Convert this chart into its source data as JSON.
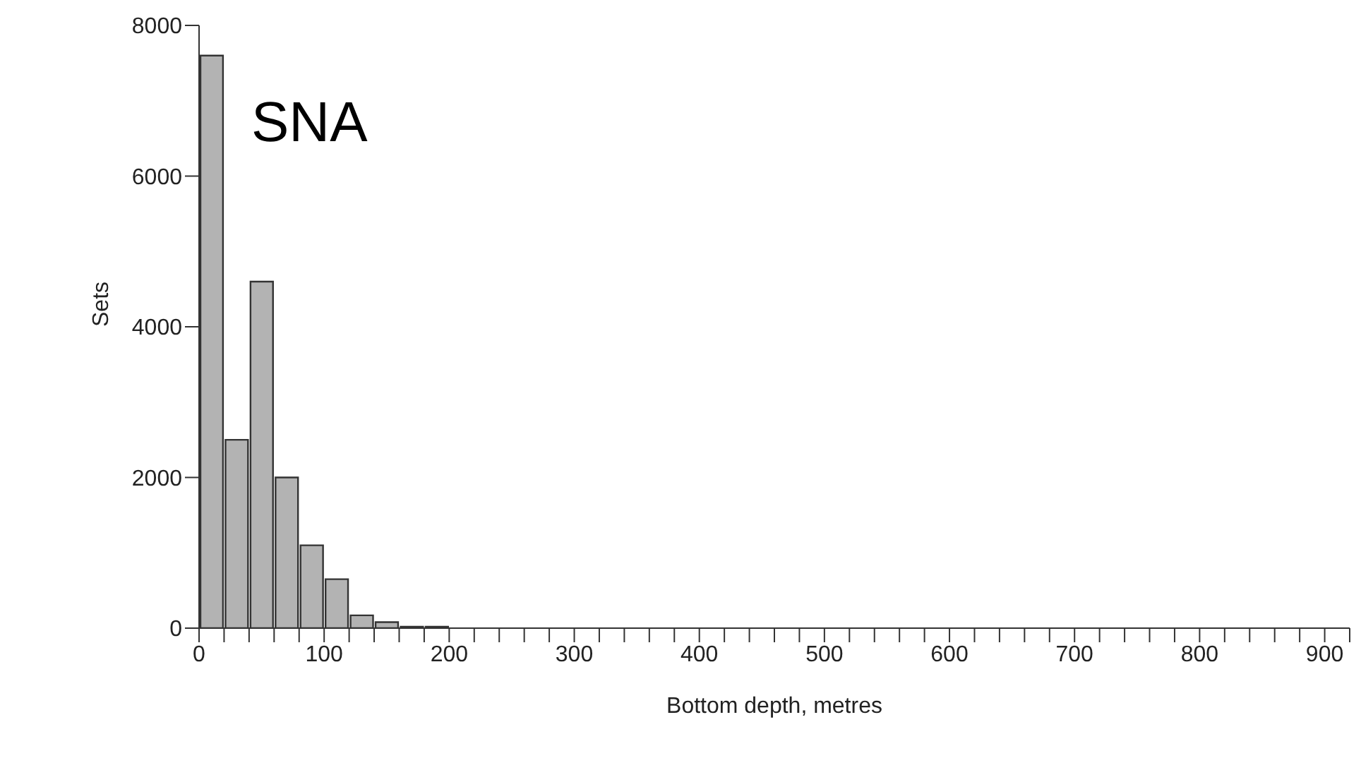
{
  "chart_data": {
    "type": "histogram",
    "title": "SNA",
    "xlabel": "Bottom depth, metres",
    "ylabel": "Sets",
    "bins": [
      0,
      20,
      40,
      60,
      80,
      100,
      120,
      140,
      160,
      180,
      200,
      220,
      240,
      260,
      280,
      300,
      320,
      340,
      360,
      380,
      400,
      420,
      440,
      460,
      480,
      500,
      520,
      540,
      560,
      580,
      600,
      620,
      640,
      660,
      680,
      700,
      720,
      740,
      760,
      780,
      800,
      820,
      840,
      860,
      880,
      900,
      920
    ],
    "values": [
      7600,
      2500,
      4600,
      2000,
      1100,
      650,
      170,
      80,
      20,
      20,
      0,
      0,
      0,
      0,
      0,
      0,
      0,
      0,
      0,
      0,
      0,
      0,
      0,
      0,
      0,
      0,
      0,
      0,
      0,
      0,
      0,
      0,
      0,
      0,
      0,
      0,
      0,
      0,
      0,
      0,
      0,
      0,
      0,
      0,
      0,
      0
    ],
    "color": "#b3b3b3",
    "xlim": [
      0,
      920
    ],
    "xticks": [
      0,
      {
        "value": 20,
        "label": null
      },
      {
        "value": 40,
        "label": null
      },
      {
        "value": 60,
        "label": null
      },
      {
        "value": 80,
        "label": null
      },
      100,
      {
        "value": 120,
        "label": null
      },
      {
        "value": 140,
        "label": null
      },
      {
        "value": 160,
        "label": null
      },
      {
        "value": 180,
        "label": null
      },
      200,
      {
        "value": 220,
        "label": null
      },
      {
        "value": 240,
        "label": null
      },
      {
        "value": 260,
        "label": null
      },
      {
        "value": 280,
        "label": null
      },
      300,
      {
        "value": 320,
        "label": null
      },
      {
        "value": 340,
        "label": null
      },
      {
        "value": 360,
        "label": null
      },
      {
        "value": 380,
        "label": null
      },
      400,
      {
        "value": 420,
        "label": null
      },
      {
        "value": 440,
        "label": null
      },
      {
        "value": 460,
        "label": null
      },
      {
        "value": 480,
        "label": null
      },
      500,
      {
        "value": 520,
        "label": null
      },
      {
        "value": 540,
        "label": null
      },
      {
        "value": 560,
        "label": null
      },
      {
        "value": 580,
        "label": null
      },
      600,
      {
        "value": 620,
        "label": null
      },
      {
        "value": 640,
        "label": null
      },
      {
        "value": 660,
        "label": null
      },
      {
        "value": 680,
        "label": null
      },
      700,
      {
        "value": 720,
        "label": null
      },
      {
        "value": 740,
        "label": null
      },
      {
        "value": 760,
        "label": null
      },
      {
        "value": 780,
        "label": null
      },
      800,
      {
        "value": 820,
        "label": null
      },
      {
        "value": 840,
        "label": null
      },
      {
        "value": 860,
        "label": null
      },
      {
        "value": 880,
        "label": null
      },
      900,
      {
        "value": 920,
        "label": null
      }
    ],
    "ylim": [
      0,
      8000
    ],
    "yticks": [
      0,
      2000,
      4000,
      6000,
      8000
    ],
    "grid": false,
    "legend": false
  }
}
